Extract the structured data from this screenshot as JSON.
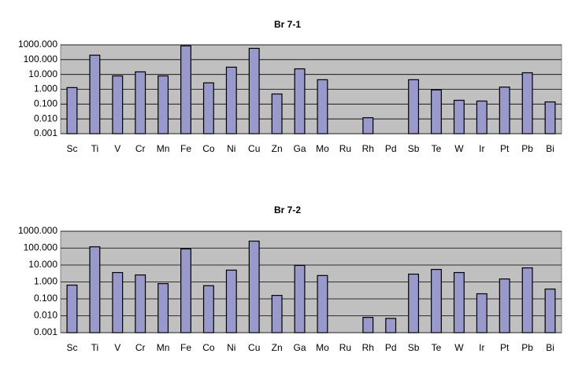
{
  "chart_data": [
    {
      "type": "bar",
      "title": "Br 7-1",
      "log_scale": true,
      "grid": true,
      "color": "#9999cc",
      "categories": [
        "Sc",
        "Ti",
        "V",
        "Cr",
        "Mn",
        "Fe",
        "Co",
        "Ni",
        "Cu",
        "Zn",
        "Ga",
        "Mo",
        "Ru",
        "Rh",
        "Pd",
        "Sb",
        "Te",
        "W",
        "Ir",
        "Pt",
        "Pb",
        "Bi"
      ],
      "values": [
        1.3,
        200,
        8,
        15,
        8,
        850,
        2.7,
        31,
        580,
        0.48,
        24,
        4.4,
        null,
        0.012,
        null,
        4.4,
        0.9,
        0.18,
        0.16,
        1.4,
        13,
        0.14
      ],
      "ylim": [
        0.001,
        1000
      ],
      "yticks": [
        {
          "value": 0.001,
          "label": "0.001"
        },
        {
          "value": 0.01,
          "label": "0.010"
        },
        {
          "value": 0.1,
          "label": "0.100"
        },
        {
          "value": 1,
          "label": "1.000"
        },
        {
          "value": 10,
          "label": "10.000"
        },
        {
          "value": 100,
          "label": "100.000"
        },
        {
          "value": 1000,
          "label": "1000.000"
        }
      ]
    },
    {
      "type": "bar",
      "title": "Br 7-2",
      "log_scale": true,
      "grid": true,
      "color": "#9999cc",
      "categories": [
        "Sc",
        "Ti",
        "V",
        "Cr",
        "Mn",
        "Fe",
        "Co",
        "Ni",
        "Cu",
        "Zn",
        "Ga",
        "Mo",
        "Ru",
        "Rh",
        "Pd",
        "Sb",
        "Te",
        "W",
        "Ir",
        "Pt",
        "Pb",
        "Bi"
      ],
      "values": [
        0.65,
        120,
        3.6,
        2.6,
        0.8,
        90,
        0.6,
        5,
        260,
        0.16,
        9.5,
        2.4,
        null,
        0.008,
        0.007,
        2.9,
        5.5,
        3.6,
        0.2,
        1.5,
        6.8,
        0.38
      ],
      "ylim": [
        0.001,
        1000
      ],
      "yticks": [
        {
          "value": 0.001,
          "label": "0.001"
        },
        {
          "value": 0.01,
          "label": "0.010"
        },
        {
          "value": 0.1,
          "label": "0.100"
        },
        {
          "value": 1,
          "label": "1.000"
        },
        {
          "value": 10,
          "label": "10.000"
        },
        {
          "value": 100,
          "label": "100.000"
        },
        {
          "value": 1000,
          "label": "1000.000"
        }
      ]
    }
  ]
}
